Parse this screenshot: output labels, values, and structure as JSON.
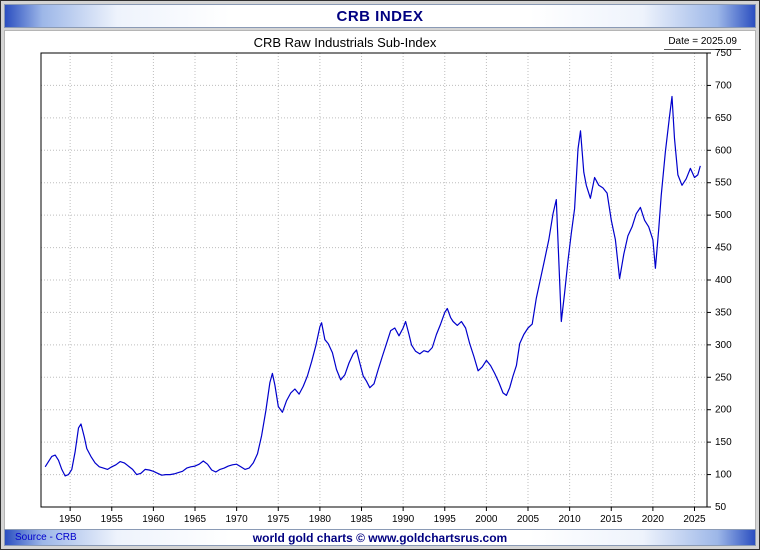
{
  "window": {
    "title": "CRB INDEX"
  },
  "header": {
    "subtitle": "CRB Raw Industrials Sub-Index",
    "date_label": "Date = 2025.09"
  },
  "footer": {
    "source": "Source - CRB",
    "website": "world gold charts © www.goldchartsrus.com"
  },
  "colors": {
    "line": "#0000cc",
    "title_text": "#000080",
    "grid": "#bdbdbd",
    "axis": "#000000",
    "source_text": "#0000cc",
    "website_text": "#000080"
  },
  "chart_data": {
    "type": "line",
    "title": "CRB Raw Industrials Sub-Index",
    "xlabel": "",
    "ylabel": "",
    "xlim": [
      1946.5,
      2026.5
    ],
    "ylim": [
      50,
      750
    ],
    "x_ticks": [
      1950,
      1955,
      1960,
      1965,
      1970,
      1975,
      1980,
      1985,
      1990,
      1995,
      2000,
      2005,
      2010,
      2015,
      2020,
      2025
    ],
    "y_ticks": [
      50,
      100,
      150,
      200,
      250,
      300,
      350,
      400,
      450,
      500,
      550,
      600,
      650,
      700,
      750
    ],
    "grid": true,
    "legend_position": "none",
    "series": [
      {
        "name": "CRB Raw Industrials Sub-Index",
        "points": [
          [
            1947.0,
            112
          ],
          [
            1947.4,
            120
          ],
          [
            1947.8,
            128
          ],
          [
            1948.2,
            130
          ],
          [
            1948.6,
            122
          ],
          [
            1949.0,
            108
          ],
          [
            1949.4,
            98
          ],
          [
            1949.8,
            100
          ],
          [
            1950.2,
            108
          ],
          [
            1950.6,
            135
          ],
          [
            1951.0,
            172
          ],
          [
            1951.3,
            178
          ],
          [
            1951.7,
            158
          ],
          [
            1952.0,
            140
          ],
          [
            1952.5,
            128
          ],
          [
            1953.0,
            118
          ],
          [
            1953.5,
            112
          ],
          [
            1954.0,
            110
          ],
          [
            1954.5,
            108
          ],
          [
            1955.0,
            112
          ],
          [
            1955.5,
            115
          ],
          [
            1956.0,
            120
          ],
          [
            1956.5,
            118
          ],
          [
            1957.0,
            113
          ],
          [
            1957.5,
            108
          ],
          [
            1958.0,
            100
          ],
          [
            1958.5,
            102
          ],
          [
            1959.0,
            108
          ],
          [
            1959.5,
            107
          ],
          [
            1960.0,
            105
          ],
          [
            1960.5,
            102
          ],
          [
            1961.0,
            99
          ],
          [
            1961.5,
            100
          ],
          [
            1962.0,
            100
          ],
          [
            1962.5,
            101
          ],
          [
            1963.0,
            103
          ],
          [
            1963.5,
            105
          ],
          [
            1964.0,
            110
          ],
          [
            1964.5,
            112
          ],
          [
            1965.0,
            113
          ],
          [
            1965.5,
            116
          ],
          [
            1966.0,
            121
          ],
          [
            1966.5,
            116
          ],
          [
            1967.0,
            107
          ],
          [
            1967.5,
            104
          ],
          [
            1968.0,
            108
          ],
          [
            1968.5,
            110
          ],
          [
            1969.0,
            113
          ],
          [
            1969.5,
            115
          ],
          [
            1970.0,
            116
          ],
          [
            1970.5,
            112
          ],
          [
            1971.0,
            108
          ],
          [
            1971.5,
            110
          ],
          [
            1972.0,
            118
          ],
          [
            1972.5,
            132
          ],
          [
            1973.0,
            160
          ],
          [
            1973.5,
            198
          ],
          [
            1974.0,
            242
          ],
          [
            1974.3,
            256
          ],
          [
            1974.6,
            238
          ],
          [
            1975.0,
            205
          ],
          [
            1975.5,
            196
          ],
          [
            1976.0,
            214
          ],
          [
            1976.5,
            226
          ],
          [
            1977.0,
            232
          ],
          [
            1977.5,
            224
          ],
          [
            1978.0,
            236
          ],
          [
            1978.5,
            252
          ],
          [
            1979.0,
            274
          ],
          [
            1979.5,
            298
          ],
          [
            1980.0,
            328
          ],
          [
            1980.2,
            334
          ],
          [
            1980.6,
            308
          ],
          [
            1981.0,
            302
          ],
          [
            1981.5,
            288
          ],
          [
            1982.0,
            262
          ],
          [
            1982.5,
            246
          ],
          [
            1983.0,
            254
          ],
          [
            1983.5,
            272
          ],
          [
            1984.0,
            286
          ],
          [
            1984.4,
            292
          ],
          [
            1984.8,
            272
          ],
          [
            1985.2,
            252
          ],
          [
            1985.6,
            244
          ],
          [
            1986.0,
            234
          ],
          [
            1986.5,
            240
          ],
          [
            1987.0,
            262
          ],
          [
            1987.5,
            282
          ],
          [
            1988.0,
            302
          ],
          [
            1988.5,
            322
          ],
          [
            1989.0,
            326
          ],
          [
            1989.5,
            314
          ],
          [
            1990.0,
            326
          ],
          [
            1990.3,
            336
          ],
          [
            1990.7,
            316
          ],
          [
            1991.0,
            300
          ],
          [
            1991.5,
            290
          ],
          [
            1992.0,
            286
          ],
          [
            1992.5,
            291
          ],
          [
            1993.0,
            289
          ],
          [
            1993.5,
            296
          ],
          [
            1994.0,
            316
          ],
          [
            1994.5,
            332
          ],
          [
            1995.0,
            350
          ],
          [
            1995.3,
            356
          ],
          [
            1995.7,
            342
          ],
          [
            1996.0,
            336
          ],
          [
            1996.5,
            330
          ],
          [
            1997.0,
            336
          ],
          [
            1997.5,
            326
          ],
          [
            1998.0,
            302
          ],
          [
            1998.5,
            282
          ],
          [
            1999.0,
            260
          ],
          [
            1999.5,
            266
          ],
          [
            2000.0,
            276
          ],
          [
            2000.5,
            268
          ],
          [
            2001.0,
            256
          ],
          [
            2001.5,
            242
          ],
          [
            2002.0,
            226
          ],
          [
            2002.4,
            222
          ],
          [
            2002.8,
            234
          ],
          [
            2003.2,
            252
          ],
          [
            2003.6,
            268
          ],
          [
            2004.0,
            302
          ],
          [
            2004.5,
            316
          ],
          [
            2005.0,
            326
          ],
          [
            2005.5,
            332
          ],
          [
            2006.0,
            372
          ],
          [
            2006.5,
            402
          ],
          [
            2007.0,
            432
          ],
          [
            2007.5,
            462
          ],
          [
            2008.0,
            502
          ],
          [
            2008.4,
            524
          ],
          [
            2008.7,
            430
          ],
          [
            2009.0,
            336
          ],
          [
            2009.4,
            380
          ],
          [
            2009.8,
            430
          ],
          [
            2010.2,
            472
          ],
          [
            2010.6,
            510
          ],
          [
            2011.0,
            602
          ],
          [
            2011.3,
            630
          ],
          [
            2011.7,
            566
          ],
          [
            2012.0,
            546
          ],
          [
            2012.5,
            526
          ],
          [
            2013.0,
            558
          ],
          [
            2013.5,
            546
          ],
          [
            2014.0,
            542
          ],
          [
            2014.5,
            534
          ],
          [
            2015.0,
            492
          ],
          [
            2015.5,
            462
          ],
          [
            2016.0,
            402
          ],
          [
            2016.5,
            440
          ],
          [
            2017.0,
            468
          ],
          [
            2017.5,
            482
          ],
          [
            2018.0,
            502
          ],
          [
            2018.5,
            512
          ],
          [
            2019.0,
            492
          ],
          [
            2019.5,
            482
          ],
          [
            2020.0,
            462
          ],
          [
            2020.3,
            418
          ],
          [
            2020.7,
            478
          ],
          [
            2021.0,
            530
          ],
          [
            2021.5,
            598
          ],
          [
            2022.0,
            652
          ],
          [
            2022.3,
            683
          ],
          [
            2022.6,
            618
          ],
          [
            2023.0,
            562
          ],
          [
            2023.5,
            546
          ],
          [
            2024.0,
            556
          ],
          [
            2024.5,
            572
          ],
          [
            2025.0,
            558
          ],
          [
            2025.4,
            562
          ],
          [
            2025.7,
            576
          ]
        ]
      }
    ]
  }
}
